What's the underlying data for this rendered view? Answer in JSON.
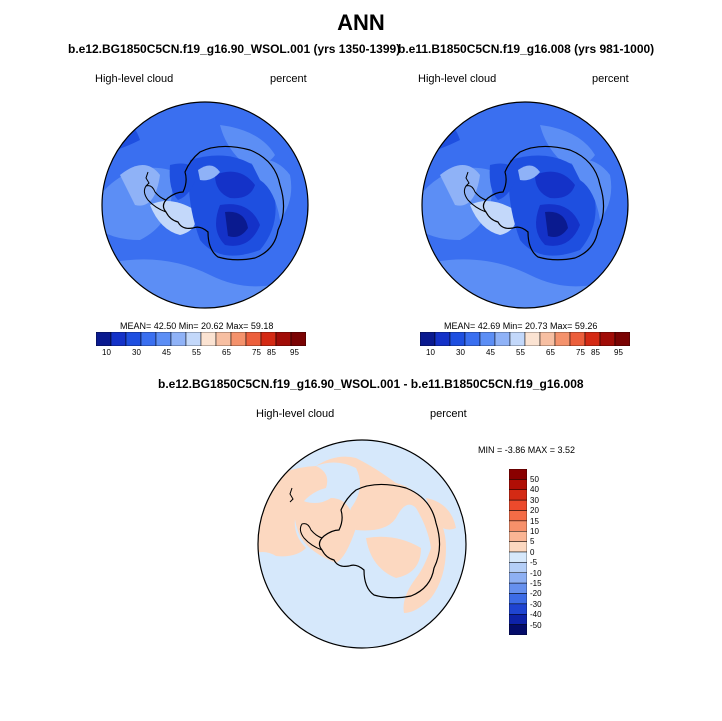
{
  "title": "ANN",
  "panels": [
    {
      "case_title": "b.e12.BG1850C5CN.f19_g16.90_WSOL.001 (yrs 1350-1399)",
      "variable": "High-level cloud",
      "units": "percent",
      "stats": "MEAN=  42.50  Min=  20.62  Max=  59.18",
      "mean": 42.5,
      "min": 20.62,
      "max": 59.18
    },
    {
      "case_title": "b.e11.B1850C5CN.f19_g16.008 (yrs 981-1000)",
      "variable": "High-level cloud",
      "units": "percent",
      "stats": "MEAN=  42.69  Min=  20.73  Max=  59.26",
      "mean": 42.69,
      "min": 20.73,
      "max": 59.26
    }
  ],
  "colorbar": {
    "tick_labels": [
      "10",
      "30",
      "45",
      "55",
      "65",
      "75",
      "85",
      "95"
    ],
    "colors": [
      "#0a1a8f",
      "#1432c8",
      "#1e4fe0",
      "#3a6ff0",
      "#5c8ef5",
      "#8fb2f7",
      "#c3d8fa",
      "#fbe3d2",
      "#f7bfa2",
      "#f4926c",
      "#ec5f3c",
      "#d42a14",
      "#a10c07",
      "#7a0303"
    ]
  },
  "diff_panel": {
    "case_title": "b.e12.BG1850C5CN.f19_g16.90_WSOL.001 - b.e11.B1850C5CN.f19_g16.008",
    "variable": "High-level cloud",
    "units": "percent",
    "stats": "MIN =  -3.86 MAX =   3.52",
    "min": -3.86,
    "max": 3.52,
    "colorbar_labels": [
      "50",
      "40",
      "30",
      "20",
      "15",
      "10",
      "5",
      "0",
      "-5",
      "-10",
      "-15",
      "-20",
      "-30",
      "-40",
      "-50"
    ],
    "colorbar_colors": [
      "#8a0000",
      "#b00e05",
      "#d42a14",
      "#ec4a2c",
      "#f46c46",
      "#f7906a",
      "#fab594",
      "#fcd8c0",
      "#d6e8fb",
      "#b4cef7",
      "#8eb0f3",
      "#6690ee",
      "#3d6ce6",
      "#1f44d1",
      "#0e22a8",
      "#040c6a"
    ]
  }
}
